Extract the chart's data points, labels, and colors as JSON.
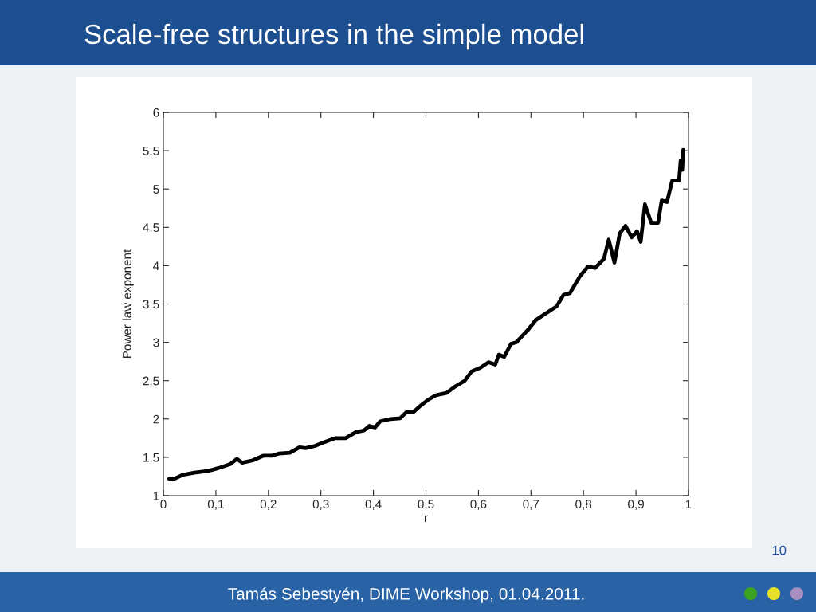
{
  "chart_data": {
    "type": "line",
    "title": "Scale-free structures in the simple model",
    "xlabel": "r",
    "ylabel": "Power law exponent",
    "annotations": [
      "10",
      "Tamás Sebestyén, DIME Workshop, 01.04.2011."
    ],
    "x": [
      0.011,
      0.021,
      0.036,
      0.059,
      0.084,
      0.105,
      0.127,
      0.14,
      0.15,
      0.17,
      0.19,
      0.206,
      0.221,
      0.241,
      0.259,
      0.271,
      0.289,
      0.307,
      0.327,
      0.347,
      0.367,
      0.382,
      0.392,
      0.403,
      0.413,
      0.433,
      0.451,
      0.463,
      0.476,
      0.489,
      0.504,
      0.519,
      0.539,
      0.557,
      0.574,
      0.587,
      0.604,
      0.619,
      0.632,
      0.639,
      0.649,
      0.662,
      0.672,
      0.694,
      0.709,
      0.729,
      0.749,
      0.762,
      0.774,
      0.794,
      0.809,
      0.822,
      0.839,
      0.848,
      0.859,
      0.869,
      0.88,
      0.892,
      0.902,
      0.909,
      0.917,
      0.929,
      0.942,
      0.949,
      0.959,
      0.969,
      0.982,
      0.985,
      0.988,
      0.99
    ],
    "values": [
      1.22,
      1.22,
      1.27,
      1.3,
      1.32,
      1.36,
      1.41,
      1.48,
      1.43,
      1.46,
      1.52,
      1.52,
      1.55,
      1.56,
      1.63,
      1.62,
      1.65,
      1.7,
      1.75,
      1.75,
      1.83,
      1.85,
      1.91,
      1.89,
      1.97,
      2.0,
      2.01,
      2.09,
      2.09,
      2.17,
      2.25,
      2.31,
      2.34,
      2.43,
      2.5,
      2.62,
      2.67,
      2.74,
      2.71,
      2.84,
      2.81,
      2.98,
      3.0,
      3.16,
      3.29,
      3.38,
      3.47,
      3.62,
      3.64,
      3.87,
      3.99,
      3.97,
      4.09,
      4.34,
      4.04,
      4.42,
      4.52,
      4.37,
      4.45,
      4.31,
      4.8,
      4.56,
      4.56,
      4.85,
      4.83,
      5.11,
      5.11,
      5.37,
      5.25,
      5.51
    ],
    "color": "#000000",
    "line_style": "solid",
    "xlim": [
      0,
      1
    ],
    "xticks": [
      0,
      {
        "value": 0.1,
        "label": "0,1"
      },
      {
        "value": 0.2,
        "label": "0,2"
      },
      {
        "value": 0.3,
        "label": "0,3"
      },
      {
        "value": 0.4,
        "label": "0,4"
      },
      {
        "value": 0.5,
        "label": "0,5"
      },
      {
        "value": 0.6,
        "label": "0,6"
      },
      {
        "value": 0.7,
        "label": "0,7"
      },
      {
        "value": 0.8,
        "label": "0,8"
      },
      {
        "value": 0.9,
        "label": "0,9"
      },
      1
    ],
    "ylim": [
      1,
      6
    ],
    "yticks": [
      1,
      1.5,
      2,
      2.5,
      3,
      3.5,
      4,
      4.5,
      5,
      5.5,
      6
    ]
  }
}
